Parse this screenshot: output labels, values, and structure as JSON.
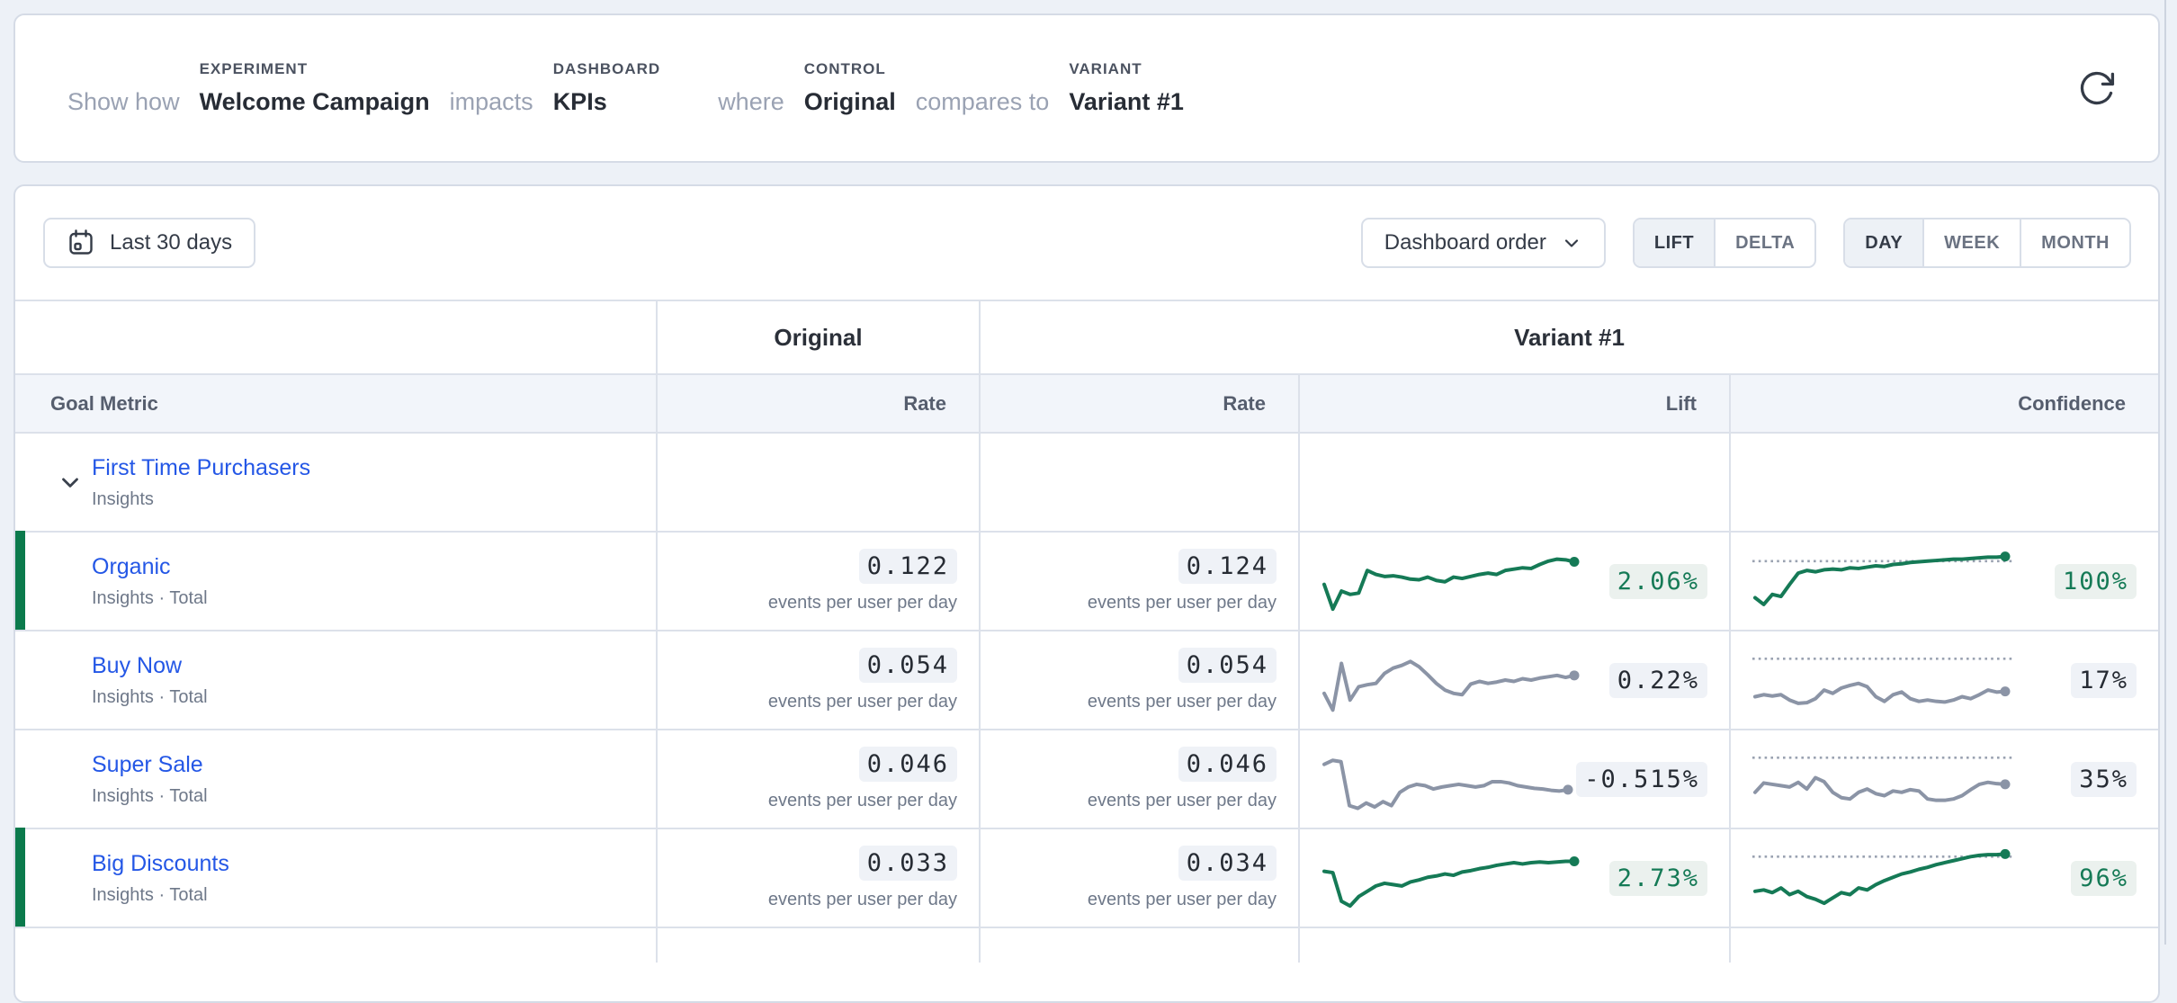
{
  "header": {
    "show_how": "Show how",
    "experiment_label": "EXPERIMENT",
    "experiment_value": "Welcome Campaign",
    "impacts": "impacts",
    "dashboard_label": "DASHBOARD",
    "dashboard_value": "KPIs",
    "where": "where",
    "control_label": "CONTROL",
    "control_value": "Original",
    "compares_to": "compares to",
    "variant_label": "VARIANT",
    "variant_value": "Variant #1"
  },
  "toolbar": {
    "date_range": "Last 30 days",
    "sort_order": "Dashboard order",
    "mode_lift": "LIFT",
    "mode_delta": "DELTA",
    "gran_day": "DAY",
    "gran_week": "WEEK",
    "gran_month": "MONTH",
    "mode_selected": "LIFT",
    "granularity_selected": "DAY"
  },
  "colors": {
    "accent_green": "#157a56",
    "spark_gray": "#8b94a6",
    "link_blue": "#2457e6",
    "green_bar": "#0b7a4c"
  },
  "table": {
    "control_header": "Original",
    "variant_header": "Variant #1",
    "columns": {
      "goal_metric": "Goal Metric",
      "rate_control": "Rate",
      "rate_variant": "Rate",
      "lift": "Lift",
      "confidence": "Confidence"
    },
    "unit": "events per user per day",
    "rows": [
      {
        "name": "First Time Purchasers",
        "subtitle": "Insights"
      },
      {
        "name": "Organic",
        "subtitle": "Insights · Total",
        "original_rate": "0.122",
        "variant_rate": "0.124",
        "lift": "2.06%",
        "confidence": "100%",
        "lift_spark": {
          "color": "#157a56",
          "threshold": null,
          "points": [
            45,
            8,
            35,
            30,
            32,
            66,
            60,
            57,
            58,
            56,
            53,
            52,
            56,
            51,
            49,
            56,
            54,
            57,
            60,
            62,
            60,
            66,
            68,
            70,
            69,
            75,
            80,
            83,
            82,
            79
          ]
        },
        "confidence_spark": {
          "color": "#157a56",
          "threshold": 80,
          "points": [
            25,
            15,
            30,
            27,
            45,
            62,
            66,
            64,
            67,
            68,
            67,
            70,
            69,
            71,
            73,
            72,
            75,
            76,
            78,
            79,
            80,
            81,
            82,
            83,
            83,
            84,
            85,
            86,
            86,
            87
          ]
        }
      },
      {
        "name": "Buy Now",
        "subtitle": "Insights · Total",
        "original_rate": "0.054",
        "variant_rate": "0.054",
        "lift": "0.22%",
        "confidence": "17%",
        "lift_spark": {
          "color": "#8b94a6",
          "threshold": null,
          "points": [
            30,
            5,
            75,
            20,
            40,
            43,
            45,
            60,
            68,
            72,
            78,
            70,
            58,
            45,
            35,
            30,
            28,
            44,
            48,
            45,
            47,
            50,
            48,
            52,
            50,
            53,
            55,
            57,
            54,
            57
          ]
        },
        "confidence_spark": {
          "color": "#8b94a6",
          "threshold": 82,
          "points": [
            25,
            28,
            26,
            28,
            20,
            15,
            16,
            22,
            35,
            30,
            38,
            42,
            45,
            40,
            25,
            18,
            28,
            32,
            22,
            18,
            20,
            18,
            17,
            20,
            25,
            22,
            28,
            35,
            32,
            33
          ]
        }
      },
      {
        "name": "Super Sale",
        "subtitle": "Insights · Total",
        "original_rate": "0.046",
        "variant_rate": "0.046",
        "lift": "-0.515%",
        "confidence": "35%",
        "lift_spark": {
          "color": "#8b94a6",
          "threshold": null,
          "points": [
            72,
            78,
            76,
            10,
            6,
            14,
            8,
            16,
            10,
            30,
            38,
            42,
            40,
            35,
            38,
            40,
            42,
            40,
            38,
            40,
            46,
            46,
            44,
            40,
            38,
            36,
            35,
            33,
            32,
            34
          ]
        },
        "confidence_spark": {
          "color": "#8b94a6",
          "threshold": 82,
          "points": [
            30,
            44,
            42,
            40,
            38,
            45,
            35,
            52,
            46,
            30,
            22,
            20,
            30,
            35,
            28,
            25,
            32,
            30,
            34,
            32,
            20,
            18,
            18,
            20,
            25,
            34,
            42,
            45,
            43,
            42
          ]
        }
      },
      {
        "name": "Big Discounts",
        "subtitle": "Insights · Total",
        "original_rate": "0.033",
        "variant_rate": "0.034",
        "lift": "2.73%",
        "confidence": "96%",
        "lift_spark": {
          "color": "#157a56",
          "threshold": null,
          "points": [
            60,
            58,
            15,
            8,
            22,
            30,
            38,
            42,
            40,
            38,
            44,
            47,
            51,
            53,
            56,
            54,
            59,
            61,
            64,
            66,
            69,
            71,
            73,
            71,
            73,
            74,
            73,
            74,
            75,
            75
          ]
        },
        "confidence_spark": {
          "color": "#157a56",
          "threshold": 82,
          "points": [
            30,
            32,
            28,
            35,
            25,
            30,
            22,
            18,
            12,
            20,
            28,
            25,
            35,
            32,
            40,
            46,
            51,
            56,
            59,
            63,
            66,
            70,
            73,
            76,
            79,
            82,
            84,
            85,
            85,
            86
          ]
        }
      }
    ]
  }
}
